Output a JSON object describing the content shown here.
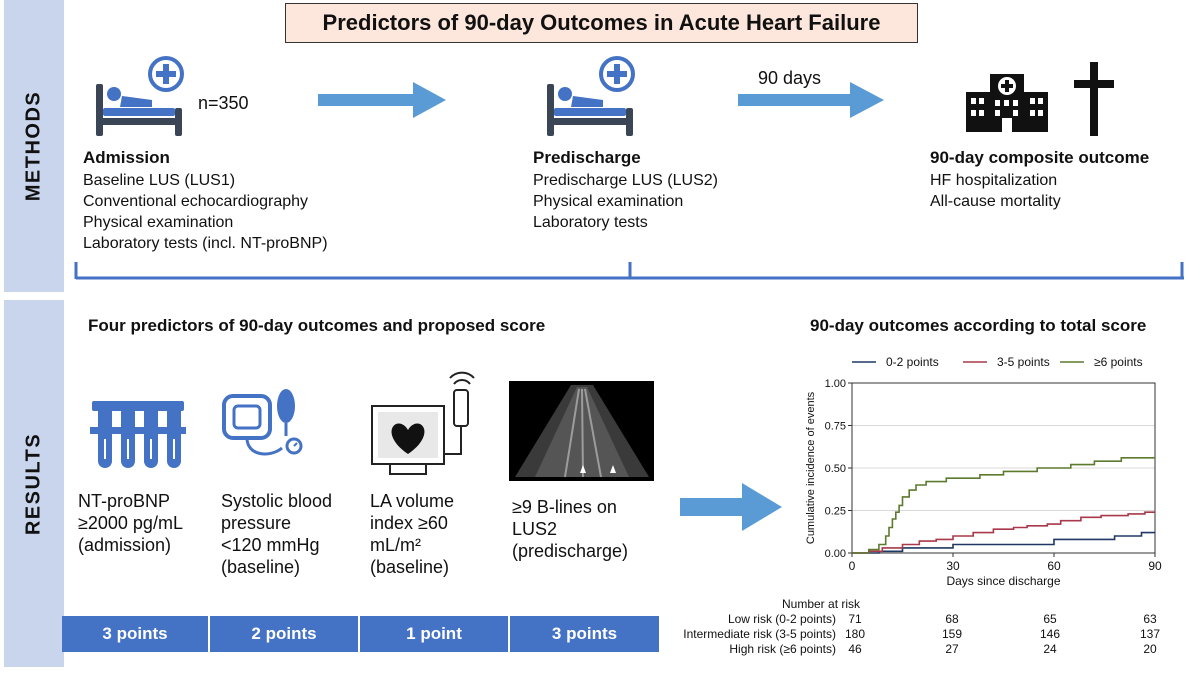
{
  "title": "Predictors of 90-day Outcomes in Acute Heart Failure",
  "sidebar": {
    "methods": "METHODS",
    "results": "RESULTS"
  },
  "methods": {
    "n_label": "n=350",
    "arrow_label": "90 days",
    "admission": {
      "title": "Admission",
      "items": [
        "Baseline LUS (LUS1)",
        "Conventional echocardiography",
        "Physical examination",
        "Laboratory tests (incl. NT-proBNP)"
      ]
    },
    "predischarge": {
      "title": "Predischarge",
      "items": [
        "Predischarge LUS (LUS2)",
        "Physical examination",
        "Laboratory tests"
      ]
    },
    "outcome": {
      "title": "90-day composite outcome",
      "items": [
        "HF hospitalization",
        "All-cause mortality"
      ]
    }
  },
  "results": {
    "predictors_title": "Four predictors of 90-day outcomes and proposed score",
    "predictors": [
      {
        "lines": [
          "NT-proBNP",
          "≥2000 pg/mL",
          "(admission)"
        ],
        "points": "3 points"
      },
      {
        "lines": [
          "Systolic blood",
          "pressure",
          "<120 mmHg",
          "(baseline)"
        ],
        "points": "2 points"
      },
      {
        "lines": [
          "LA volume",
          "index ≥60",
          "mL/m²",
          "(baseline)"
        ],
        "points": "1 point"
      },
      {
        "lines": [
          "≥9 B-lines on",
          "LUS2",
          "(predischarge)"
        ],
        "points": "3 points"
      }
    ],
    "chart_title": "90-day outcomes according to total score"
  },
  "chart_data": {
    "type": "line",
    "title": "90-day outcomes according to total score",
    "xlabel": "Days since discharge",
    "ylabel": "Cumulative incidence of events",
    "xlim": [
      0,
      90
    ],
    "ylim": [
      0,
      1
    ],
    "xticks": [
      "0",
      "30",
      "60",
      "90"
    ],
    "yticks": [
      "0.00",
      "0.25",
      "0.50",
      "0.75",
      "1.00"
    ],
    "grid": "horizontal",
    "legend_position": "top",
    "series": [
      {
        "name": "0-2 points",
        "color": "#1f3864",
        "points": [
          [
            0,
            0
          ],
          [
            8,
            0
          ],
          [
            8,
            0.01
          ],
          [
            15,
            0.01
          ],
          [
            15,
            0.03
          ],
          [
            30,
            0.03
          ],
          [
            30,
            0.05
          ],
          [
            60,
            0.05
          ],
          [
            60,
            0.08
          ],
          [
            78,
            0.08
          ],
          [
            78,
            0.1
          ],
          [
            86,
            0.1
          ],
          [
            86,
            0.12
          ],
          [
            90,
            0.12
          ]
        ]
      },
      {
        "name": "3-5 points",
        "color": "#a8384a",
        "points": [
          [
            0,
            0
          ],
          [
            5,
            0
          ],
          [
            5,
            0.01
          ],
          [
            9,
            0.01
          ],
          [
            9,
            0.03
          ],
          [
            15,
            0.03
          ],
          [
            15,
            0.05
          ],
          [
            20,
            0.05
          ],
          [
            20,
            0.07
          ],
          [
            25,
            0.07
          ],
          [
            25,
            0.08
          ],
          [
            30,
            0.08
          ],
          [
            30,
            0.1
          ],
          [
            36,
            0.1
          ],
          [
            36,
            0.12
          ],
          [
            42,
            0.12
          ],
          [
            42,
            0.14
          ],
          [
            48,
            0.14
          ],
          [
            48,
            0.15
          ],
          [
            52,
            0.15
          ],
          [
            52,
            0.16
          ],
          [
            58,
            0.16
          ],
          [
            58,
            0.17
          ],
          [
            62,
            0.17
          ],
          [
            62,
            0.19
          ],
          [
            68,
            0.19
          ],
          [
            68,
            0.21
          ],
          [
            74,
            0.21
          ],
          [
            74,
            0.22
          ],
          [
            82,
            0.22
          ],
          [
            82,
            0.23
          ],
          [
            87,
            0.23
          ],
          [
            87,
            0.24
          ],
          [
            90,
            0.24
          ]
        ]
      },
      {
        "name": "≥6 points",
        "color": "#5e7a2e",
        "points": [
          [
            0,
            0
          ],
          [
            5,
            0
          ],
          [
            5,
            0.02
          ],
          [
            8,
            0.02
          ],
          [
            8,
            0.05
          ],
          [
            10,
            0.05
          ],
          [
            10,
            0.1
          ],
          [
            11,
            0.1
          ],
          [
            11,
            0.15
          ],
          [
            12,
            0.15
          ],
          [
            12,
            0.2
          ],
          [
            13,
            0.2
          ],
          [
            13,
            0.24
          ],
          [
            14,
            0.24
          ],
          [
            14,
            0.28
          ],
          [
            15,
            0.28
          ],
          [
            15,
            0.33
          ],
          [
            17,
            0.33
          ],
          [
            17,
            0.37
          ],
          [
            19,
            0.37
          ],
          [
            19,
            0.4
          ],
          [
            22,
            0.4
          ],
          [
            22,
            0.42
          ],
          [
            28,
            0.42
          ],
          [
            28,
            0.44
          ],
          [
            38,
            0.44
          ],
          [
            38,
            0.46
          ],
          [
            45,
            0.46
          ],
          [
            45,
            0.48
          ],
          [
            55,
            0.48
          ],
          [
            55,
            0.5
          ],
          [
            65,
            0.5
          ],
          [
            65,
            0.52
          ],
          [
            72,
            0.52
          ],
          [
            72,
            0.54
          ],
          [
            80,
            0.54
          ],
          [
            80,
            0.56
          ],
          [
            90,
            0.56
          ]
        ]
      }
    ],
    "risk_table": {
      "title": "Number at risk",
      "days": [
        0,
        30,
        60,
        90
      ],
      "rows": [
        {
          "label": "Low risk (0-2 points)",
          "values": [
            "71",
            "68",
            "65",
            "63"
          ]
        },
        {
          "label": "Intermediate risk (3-5 points)",
          "values": [
            "180",
            "159",
            "146",
            "137"
          ]
        },
        {
          "label": "High risk (≥6 points)",
          "values": [
            "46",
            "27",
            "24",
            "20"
          ]
        }
      ]
    }
  },
  "colors": {
    "accent": "#4472c4",
    "arrow": "#5b9bd5",
    "sidebar": "#c9d5ec",
    "title_bg": "#fde7dc"
  }
}
